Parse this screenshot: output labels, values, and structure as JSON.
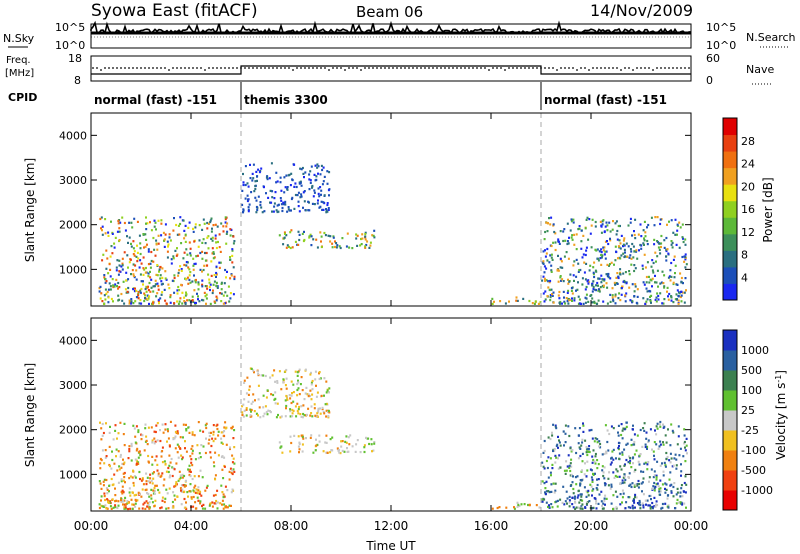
{
  "header": {
    "title": "Syowa East (fitACF)",
    "beam": "Beam 06",
    "date": "14/Nov/2009"
  },
  "nsky_panel": {
    "label": "N.Sky",
    "right_label": "N.Search",
    "ticks_left": [
      "10^5",
      "10^0"
    ],
    "ticks_right": [
      "10^5",
      "10^0"
    ]
  },
  "freq_panel": {
    "label_line1": "Freq.",
    "label_line2": "[MHz]",
    "right_label": "Nave",
    "ticks_left": [
      "18",
      "8"
    ],
    "ticks_right": [
      "60",
      "0"
    ]
  },
  "cpid": {
    "label": "CPID",
    "segments": [
      {
        "start_hour": 0,
        "end_hour": 6,
        "name": "normal (fast) -151"
      },
      {
        "start_hour": 6,
        "end_hour": 18,
        "name": "themis 3300"
      },
      {
        "start_hour": 18,
        "end_hour": 24,
        "name": "normal (fast) -151"
      }
    ]
  },
  "x_axis": {
    "label": "Time UT",
    "ticks": [
      "00:00",
      "04:00",
      "08:00",
      "12:00",
      "16:00",
      "20:00",
      "00:00"
    ]
  },
  "chart_data": [
    {
      "type": "heatmap",
      "title": "Power",
      "ylabel": "Slant Range [km]",
      "xlabel": "Time UT",
      "xlim": [
        0,
        24
      ],
      "ylim": [
        180,
        4500
      ],
      "y_ticks": [
        "1000",
        "2000",
        "3000",
        "4000"
      ],
      "colorbar": {
        "label": "Power [dB]",
        "ticks": [
          "4",
          "8",
          "12",
          "16",
          "20",
          "24",
          "28"
        ],
        "colors": [
          "#1a28f0",
          "#1c4fb8",
          "#2a6f80",
          "#3c8f5a",
          "#5cb838",
          "#8fd020",
          "#e8e010",
          "#f0a020",
          "#f07010",
          "#e84010",
          "#e00000"
        ]
      },
      "regions": [
        {
          "t": [
            0.3,
            5.7
          ],
          "r": [
            250,
            2200
          ],
          "level": "mixed-high"
        },
        {
          "t": [
            6.0,
            9.5
          ],
          "r": [
            2300,
            3400
          ],
          "level": "low"
        },
        {
          "t": [
            7.5,
            11.3
          ],
          "r": [
            1500,
            1900
          ],
          "level": "mid"
        },
        {
          "t": [
            16.0,
            18.0
          ],
          "r": [
            250,
            400
          ],
          "level": "mixed"
        },
        {
          "t": [
            18.0,
            23.8
          ],
          "r": [
            250,
            2200
          ],
          "level": "low-mid"
        }
      ]
    },
    {
      "type": "heatmap",
      "title": "Velocity",
      "ylabel": "Slant Range [km]",
      "xlabel": "Time UT",
      "xlim": [
        0,
        24
      ],
      "ylim": [
        180,
        4500
      ],
      "y_ticks": [
        "1000",
        "2000",
        "3000",
        "4000"
      ],
      "colorbar": {
        "label": "Velocity [m s^-1]",
        "ticks": [
          "1000",
          "500",
          "100",
          "25",
          "-25",
          "-100",
          "-500",
          "-1000"
        ],
        "colors": [
          "#1a30c0",
          "#2a60a0",
          "#3c8050",
          "#60c030",
          "#c8c8c8",
          "#f0c020",
          "#f08010",
          "#f04010",
          "#e80000"
        ]
      },
      "regions": [
        {
          "t": [
            0.3,
            5.7
          ],
          "r": [
            250,
            2200
          ],
          "level": "negative"
        },
        {
          "t": [
            6.0,
            9.5
          ],
          "r": [
            2300,
            3400
          ],
          "level": "near-zero"
        },
        {
          "t": [
            7.5,
            11.3
          ],
          "r": [
            1500,
            1900
          ],
          "level": "near-zero"
        },
        {
          "t": [
            16.0,
            18.0
          ],
          "r": [
            250,
            400
          ],
          "level": "mixed"
        },
        {
          "t": [
            18.0,
            23.8
          ],
          "r": [
            250,
            2200
          ],
          "level": "positive"
        }
      ]
    }
  ]
}
